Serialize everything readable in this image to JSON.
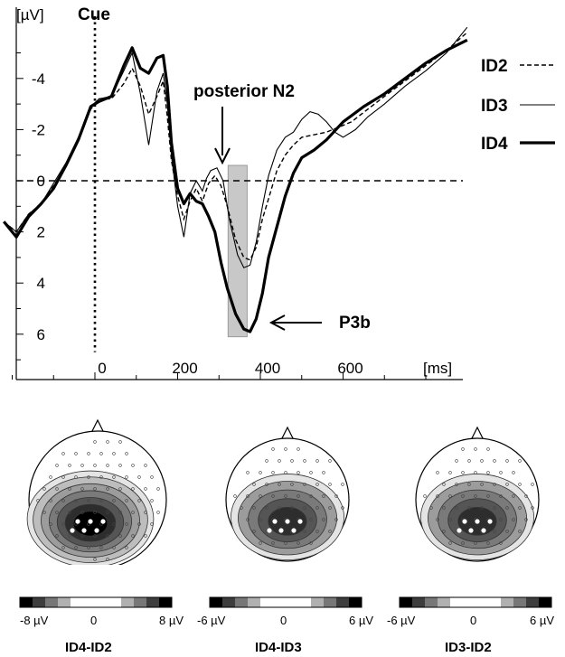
{
  "chart_data": [
    {
      "type": "line",
      "y_unit_label": "[µV]",
      "x_unit_label": "[ms]",
      "y_inverted": true,
      "xlim": [
        -220,
        900
      ],
      "ylim": [
        -6.2,
        7.5
      ],
      "x_ticks": [
        0,
        200,
        400,
        600
      ],
      "x_tick_labels": [
        "0",
        "200",
        "400",
        "600"
      ],
      "y_ticks": [
        -4,
        -2,
        0,
        2,
        4,
        6
      ],
      "y_tick_labels": [
        "-4",
        "-2",
        "0",
        "2",
        "4",
        "6"
      ],
      "legend_position": "right",
      "annotations": {
        "cue": "Cue",
        "n2": "posterior N2",
        "p3b": "P3b"
      },
      "highlight_window_ms": [
        322,
        368
      ],
      "series": [
        {
          "name": "ID2",
          "style": "dashed",
          "points": [
            [
              -220,
              1.6
            ],
            [
              -190,
              2.0
            ],
            [
              -160,
              1.3
            ],
            [
              -130,
              0.9
            ],
            [
              -100,
              0.2
            ],
            [
              -70,
              -0.6
            ],
            [
              -40,
              -1.6
            ],
            [
              -10,
              -2.8
            ],
            [
              10,
              -3.2
            ],
            [
              40,
              -3.2
            ],
            [
              70,
              -3.8
            ],
            [
              90,
              -4.4
            ],
            [
              110,
              -3.7
            ],
            [
              130,
              -2.6
            ],
            [
              150,
              -3.3
            ],
            [
              165,
              -3.9
            ],
            [
              175,
              -2.5
            ],
            [
              185,
              -0.8
            ],
            [
              200,
              0.6
            ],
            [
              215,
              1.5
            ],
            [
              230,
              0.8
            ],
            [
              245,
              0.3
            ],
            [
              260,
              0.8
            ],
            [
              275,
              0.1
            ],
            [
              290,
              -0.2
            ],
            [
              305,
              0.2
            ],
            [
              320,
              1.0
            ],
            [
              340,
              2.3
            ],
            [
              360,
              3.0
            ],
            [
              375,
              3.1
            ],
            [
              390,
              2.6
            ],
            [
              405,
              1.5
            ],
            [
              420,
              0.7
            ],
            [
              440,
              -0.4
            ],
            [
              460,
              -1.0
            ],
            [
              480,
              -1.4
            ],
            [
              500,
              -1.7
            ],
            [
              530,
              -1.8
            ],
            [
              560,
              -1.9
            ],
            [
              590,
              -2.1
            ],
            [
              620,
              -2.3
            ],
            [
              660,
              -2.8
            ],
            [
              700,
              -3.3
            ],
            [
              750,
              -3.9
            ],
            [
              800,
              -4.5
            ],
            [
              850,
              -5.1
            ],
            [
              900,
              -5.8
            ]
          ]
        },
        {
          "name": "ID3",
          "style": "thin",
          "points": [
            [
              -220,
              1.6
            ],
            [
              -190,
              2.0
            ],
            [
              -160,
              1.3
            ],
            [
              -130,
              0.9
            ],
            [
              -100,
              0.1
            ],
            [
              -70,
              -0.7
            ],
            [
              -40,
              -1.7
            ],
            [
              -10,
              -2.9
            ],
            [
              10,
              -3.2
            ],
            [
              40,
              -3.3
            ],
            [
              70,
              -4.3
            ],
            [
              90,
              -5.0
            ],
            [
              110,
              -3.4
            ],
            [
              130,
              -1.4
            ],
            [
              150,
              -3.5
            ],
            [
              165,
              -4.2
            ],
            [
              175,
              -3.0
            ],
            [
              185,
              -1.0
            ],
            [
              200,
              1.0
            ],
            [
              215,
              2.2
            ],
            [
              230,
              0.5
            ],
            [
              245,
              0.0
            ],
            [
              260,
              0.4
            ],
            [
              270,
              -0.1
            ],
            [
              280,
              -0.4
            ],
            [
              295,
              -0.5
            ],
            [
              310,
              0.0
            ],
            [
              325,
              1.5
            ],
            [
              345,
              2.9
            ],
            [
              360,
              3.4
            ],
            [
              375,
              3.3
            ],
            [
              390,
              2.4
            ],
            [
              405,
              1.0
            ],
            [
              420,
              -0.2
            ],
            [
              440,
              -1.2
            ],
            [
              460,
              -1.7
            ],
            [
              480,
              -1.9
            ],
            [
              500,
              -2.4
            ],
            [
              520,
              -2.7
            ],
            [
              540,
              -2.6
            ],
            [
              560,
              -2.3
            ],
            [
              580,
              -1.9
            ],
            [
              600,
              -1.7
            ],
            [
              630,
              -2.0
            ],
            [
              660,
              -2.5
            ],
            [
              700,
              -3.0
            ],
            [
              750,
              -3.7
            ],
            [
              800,
              -4.3
            ],
            [
              850,
              -5.0
            ],
            [
              900,
              -6.0
            ]
          ]
        },
        {
          "name": "ID4",
          "style": "thick",
          "points": [
            [
              -220,
              1.6
            ],
            [
              -190,
              2.2
            ],
            [
              -160,
              1.4
            ],
            [
              -130,
              0.9
            ],
            [
              -100,
              0.3
            ],
            [
              -70,
              -0.6
            ],
            [
              -40,
              -1.6
            ],
            [
              -10,
              -2.9
            ],
            [
              10,
              -3.1
            ],
            [
              40,
              -3.3
            ],
            [
              70,
              -4.5
            ],
            [
              90,
              -5.2
            ],
            [
              110,
              -4.4
            ],
            [
              130,
              -4.2
            ],
            [
              150,
              -4.8
            ],
            [
              165,
              -4.9
            ],
            [
              175,
              -3.7
            ],
            [
              185,
              -1.5
            ],
            [
              200,
              0.3
            ],
            [
              215,
              0.9
            ],
            [
              230,
              0.5
            ],
            [
              245,
              0.8
            ],
            [
              260,
              0.9
            ],
            [
              275,
              1.4
            ],
            [
              290,
              2.0
            ],
            [
              305,
              3.2
            ],
            [
              320,
              4.2
            ],
            [
              340,
              5.2
            ],
            [
              360,
              5.8
            ],
            [
              375,
              5.9
            ],
            [
              390,
              5.4
            ],
            [
              405,
              4.4
            ],
            [
              420,
              3.0
            ],
            [
              440,
              1.8
            ],
            [
              460,
              0.6
            ],
            [
              480,
              -0.3
            ],
            [
              500,
              -0.9
            ],
            [
              530,
              -1.2
            ],
            [
              560,
              -1.6
            ],
            [
              600,
              -2.3
            ],
            [
              650,
              -2.9
            ],
            [
              700,
              -3.4
            ],
            [
              750,
              -4.0
            ],
            [
              800,
              -4.6
            ],
            [
              850,
              -5.1
            ],
            [
              900,
              -5.5
            ]
          ]
        }
      ]
    },
    {
      "type": "heatmap",
      "topomaps": [
        {
          "title": "ID4-ID2",
          "scale_min": "-8 µV",
          "scale_mid": "0",
          "scale_max": "8 µV",
          "max_abs_uV": 8,
          "peak_level": 7
        },
        {
          "title": "ID4-ID3",
          "scale_min": "-6 µV",
          "scale_mid": "0",
          "scale_max": "6 µV",
          "max_abs_uV": 6,
          "peak_level": 5
        },
        {
          "title": "ID3-ID2",
          "scale_min": "-6 µV",
          "scale_mid": "0",
          "scale_max": "6 µV",
          "max_abs_uV": 6,
          "peak_level": 5
        }
      ]
    }
  ]
}
